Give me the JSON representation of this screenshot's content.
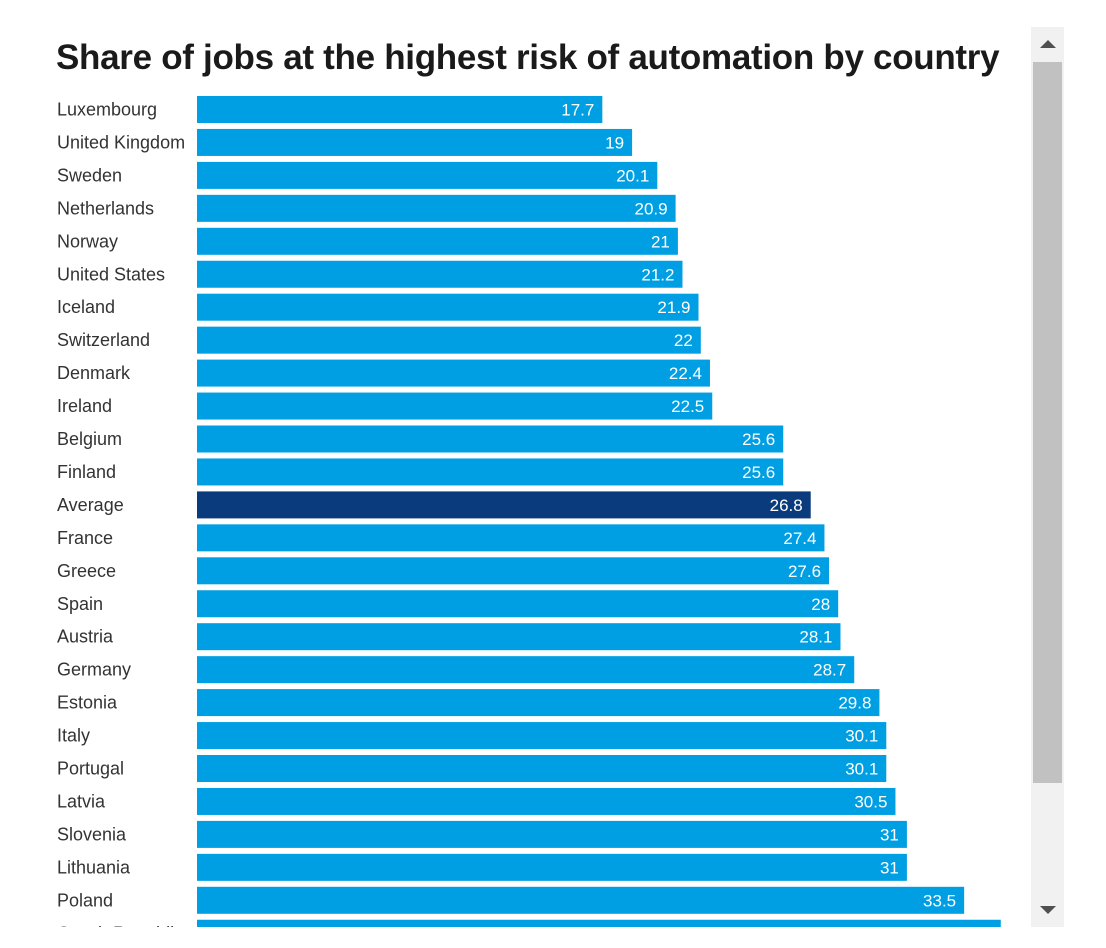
{
  "colors": {
    "bar": "#009fe3",
    "highlight": "#0a3c7d",
    "scrollbar_track": "#f1f1f1",
    "scrollbar_thumb": "#c1c1c1"
  },
  "scrollbar": {
    "up_icon": "triangle-up-icon",
    "down_icon": "triangle-down-icon"
  },
  "chart_data": {
    "type": "bar",
    "orientation": "horizontal",
    "title": "Share of jobs at the highest risk of automation by country",
    "xlabel": "",
    "ylabel": "",
    "xlim": [
      0,
      35
    ],
    "grid": false,
    "highlight_category": "Average",
    "categories": [
      "Luxembourg",
      "United Kingdom",
      "Sweden",
      "Netherlands",
      "Norway",
      "United States",
      "Iceland",
      "Switzerland",
      "Denmark",
      "Ireland",
      "Belgium",
      "Finland",
      "Average",
      "France",
      "Greece",
      "Spain",
      "Austria",
      "Germany",
      "Estonia",
      "Italy",
      "Portugal",
      "Latvia",
      "Slovenia",
      "Lithuania",
      "Poland",
      "Czech Republic"
    ],
    "values": [
      17.7,
      19,
      20.1,
      20.9,
      21,
      21.2,
      21.9,
      22,
      22.4,
      22.5,
      25.6,
      25.6,
      26.8,
      27.4,
      27.6,
      28,
      28.1,
      28.7,
      29.8,
      30.1,
      30.1,
      30.5,
      31,
      31,
      33.5,
      35.1
    ]
  }
}
